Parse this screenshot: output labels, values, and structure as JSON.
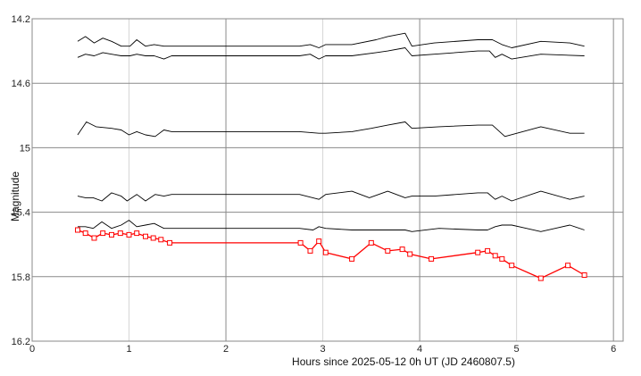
{
  "chart_data": {
    "type": "line",
    "xlabel": "Hours since 2025-05-12 0h UT (JD 2460807.5)",
    "ylabel": "Magnitude",
    "xlim": [
      0,
      6.1
    ],
    "ylim": [
      16.2,
      14.2
    ],
    "y_inverted": true,
    "grid": true,
    "x_ticks": [
      "0",
      "1",
      "2",
      "3",
      "4",
      "5",
      "6"
    ],
    "y_ticks": [
      "14.2",
      "14.6",
      "15",
      "15.4",
      "15.8",
      "16.2"
    ],
    "series": [
      {
        "color": "#000000",
        "marker": "none",
        "x": [
          0.47,
          0.55,
          0.64,
          0.73,
          0.82,
          0.92,
          1.01,
          1.08,
          1.17,
          1.26,
          1.36,
          1.44,
          1.6,
          2.0,
          2.4,
          2.76,
          2.87,
          2.96,
          3.03,
          3.3,
          3.55,
          3.67,
          3.85,
          3.92,
          4.15,
          4.6,
          4.75,
          4.85,
          4.95,
          5.25,
          5.55,
          5.7
        ],
        "y": [
          14.34,
          14.31,
          14.35,
          14.32,
          14.34,
          14.37,
          14.37,
          14.33,
          14.37,
          14.36,
          14.37,
          14.37,
          14.37,
          14.37,
          14.37,
          14.37,
          14.36,
          14.38,
          14.36,
          14.36,
          14.33,
          14.31,
          14.29,
          14.37,
          14.35,
          14.33,
          14.33,
          14.36,
          14.38,
          14.34,
          14.35,
          14.37
        ]
      },
      {
        "color": "#000000",
        "marker": "none",
        "x": [
          0.47,
          0.55,
          0.64,
          0.73,
          0.82,
          0.92,
          1.01,
          1.08,
          1.17,
          1.26,
          1.36,
          1.44,
          1.6,
          2.0,
          2.4,
          2.76,
          2.87,
          2.96,
          3.03,
          3.3,
          3.55,
          3.67,
          3.85,
          3.92,
          4.15,
          4.6,
          4.72,
          4.78,
          4.85,
          4.95,
          5.25,
          5.7
        ],
        "y": [
          14.44,
          14.42,
          14.43,
          14.41,
          14.42,
          14.43,
          14.43,
          14.42,
          14.43,
          14.43,
          14.45,
          14.43,
          14.43,
          14.43,
          14.43,
          14.43,
          14.42,
          14.45,
          14.43,
          14.43,
          14.41,
          14.4,
          14.38,
          14.43,
          14.42,
          14.4,
          14.4,
          14.44,
          14.42,
          14.45,
          14.42,
          14.43
        ]
      },
      {
        "color": "#000000",
        "marker": "none",
        "x": [
          0.47,
          0.56,
          0.66,
          0.82,
          0.92,
          1.0,
          1.08,
          1.17,
          1.27,
          1.36,
          1.44,
          1.6,
          2.0,
          2.4,
          2.76,
          2.96,
          3.03,
          3.3,
          3.5,
          3.67,
          3.85,
          3.92,
          4.2,
          4.6,
          4.75,
          4.88,
          5.25,
          5.55,
          5.7
        ],
        "y": [
          14.92,
          14.84,
          14.87,
          14.88,
          14.89,
          14.92,
          14.9,
          14.92,
          14.93,
          14.89,
          14.9,
          14.9,
          14.9,
          14.9,
          14.9,
          14.91,
          14.91,
          14.9,
          14.88,
          14.86,
          14.84,
          14.88,
          14.87,
          14.86,
          14.86,
          14.93,
          14.87,
          14.91,
          14.91
        ]
      },
      {
        "color": "#000000",
        "marker": "none",
        "x": [
          0.47,
          0.55,
          0.63,
          0.72,
          0.82,
          0.92,
          0.98,
          1.08,
          1.17,
          1.27,
          1.36,
          1.44,
          1.6,
          2.0,
          2.4,
          2.76,
          2.96,
          3.03,
          3.3,
          3.48,
          3.67,
          3.85,
          3.92,
          4.15,
          4.6,
          4.7,
          4.78,
          4.85,
          4.95,
          5.25,
          5.55,
          5.7
        ],
        "y": [
          15.3,
          15.31,
          15.31,
          15.33,
          15.28,
          15.3,
          15.33,
          15.29,
          15.33,
          15.29,
          15.3,
          15.29,
          15.29,
          15.29,
          15.29,
          15.29,
          15.32,
          15.29,
          15.27,
          15.31,
          15.27,
          15.31,
          15.3,
          15.3,
          15.28,
          15.28,
          15.32,
          15.3,
          15.33,
          15.27,
          15.32,
          15.3
        ]
      },
      {
        "color": "#000000",
        "marker": "none",
        "x": [
          0.47,
          0.55,
          0.63,
          0.72,
          0.82,
          0.92,
          1.0,
          1.08,
          1.17,
          1.26,
          1.36,
          1.44,
          1.6,
          2.0,
          2.4,
          2.76,
          2.9,
          2.96,
          3.03,
          3.3,
          3.48,
          3.67,
          3.85,
          3.92,
          4.2,
          4.6,
          4.7,
          4.78,
          4.85,
          4.95,
          5.25,
          5.55,
          5.7
        ],
        "y": [
          15.49,
          15.49,
          15.5,
          15.46,
          15.5,
          15.48,
          15.45,
          15.49,
          15.48,
          15.47,
          15.5,
          15.5,
          15.5,
          15.5,
          15.5,
          15.5,
          15.51,
          15.49,
          15.5,
          15.51,
          15.51,
          15.51,
          15.51,
          15.52,
          15.5,
          15.51,
          15.51,
          15.49,
          15.48,
          15.48,
          15.52,
          15.48,
          15.51
        ]
      },
      {
        "color": "#ff0000",
        "marker": "square",
        "x": [
          0.47,
          0.55,
          0.64,
          0.73,
          0.82,
          0.91,
          1.0,
          1.08,
          1.17,
          1.25,
          1.33,
          1.42,
          2.77,
          2.87,
          2.96,
          3.03,
          3.3,
          3.5,
          3.67,
          3.82,
          3.9,
          4.12,
          4.6,
          4.7,
          4.78,
          4.85,
          4.95,
          5.25,
          5.53,
          5.7
        ],
        "y": [
          15.51,
          15.53,
          15.56,
          15.53,
          15.54,
          15.53,
          15.54,
          15.53,
          15.55,
          15.56,
          15.57,
          15.59,
          15.59,
          15.64,
          15.58,
          15.65,
          15.69,
          15.59,
          15.64,
          15.63,
          15.66,
          15.69,
          15.65,
          15.64,
          15.67,
          15.69,
          15.73,
          15.81,
          15.73,
          15.79
        ]
      }
    ]
  }
}
